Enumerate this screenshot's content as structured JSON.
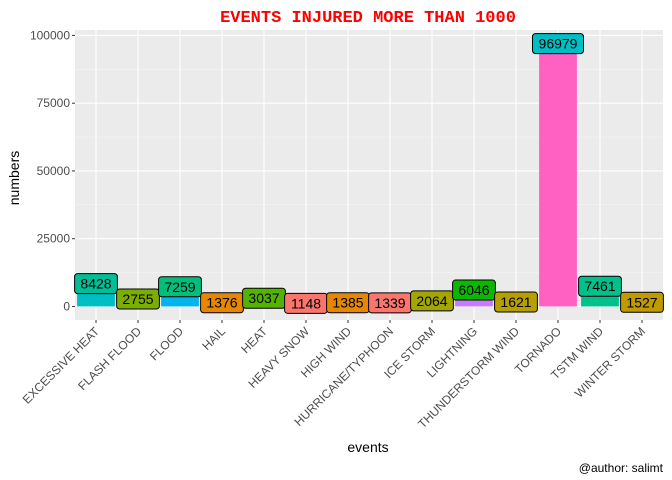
{
  "chart_data": {
    "type": "bar",
    "title": "EVENTS INJURED MORE THAN 1000",
    "xlabel": "events",
    "ylabel": "numbers",
    "caption": "@author: salimt",
    "ylim": [
      -5000,
      102000
    ],
    "y_ticks": [
      0,
      25000,
      50000,
      75000,
      100000
    ],
    "y_tick_labels": [
      "0",
      "25000",
      "50000",
      "75000",
      "100000"
    ],
    "grid": true,
    "legend": "none",
    "categories": [
      "EXCESSIVE HEAT",
      "FLASH FLOOD",
      "FLOOD",
      "HAIL",
      "HEAT",
      "HEAVY SNOW",
      "HIGH WIND",
      "HURRICANE/TYPHOON",
      "ICE STORM",
      "LIGHTNING",
      "THUNDERSTORM WIND",
      "TORNADO",
      "TSTM WIND",
      "WINTER STORM"
    ],
    "values": [
      8428,
      2755,
      7259,
      1376,
      3037,
      1148,
      1385,
      1339,
      2064,
      6046,
      1621,
      96979,
      7461,
      1527
    ],
    "data_labels": [
      "8428",
      "2755",
      "7259",
      "1376",
      "3037",
      "1148",
      "1385",
      "1339",
      "2064",
      "6046",
      "1621",
      "96979",
      "7461",
      "1527"
    ],
    "colors": [
      "#00BFC4",
      "#7CAE00",
      "#00B4F0",
      "#E58700",
      "#53B400",
      "#F8766D",
      "#DE8C00",
      "#F8766D",
      "#A3A500",
      "#C77CFF",
      "#B79F00",
      "#FF61C3",
      "#00C08B",
      "#C09B00"
    ],
    "label_colors": [
      "#00BF96",
      "#7CAE00",
      "#00BF7D",
      "#E58700",
      "#53B400",
      "#F8766D",
      "#E58700",
      "#F8766D",
      "#A3A500",
      "#0CB702",
      "#B79F00",
      "#00BFC4",
      "#00C08B",
      "#C09B00"
    ]
  },
  "theme": {
    "panel_bg": "#EBEBEB",
    "grid_major": "#FFFFFF",
    "grid_minor": "#F5F5F5",
    "title_color": "#FF0000",
    "axis_text_color": "#4D4D4D",
    "axis_title_color": "#000000"
  }
}
